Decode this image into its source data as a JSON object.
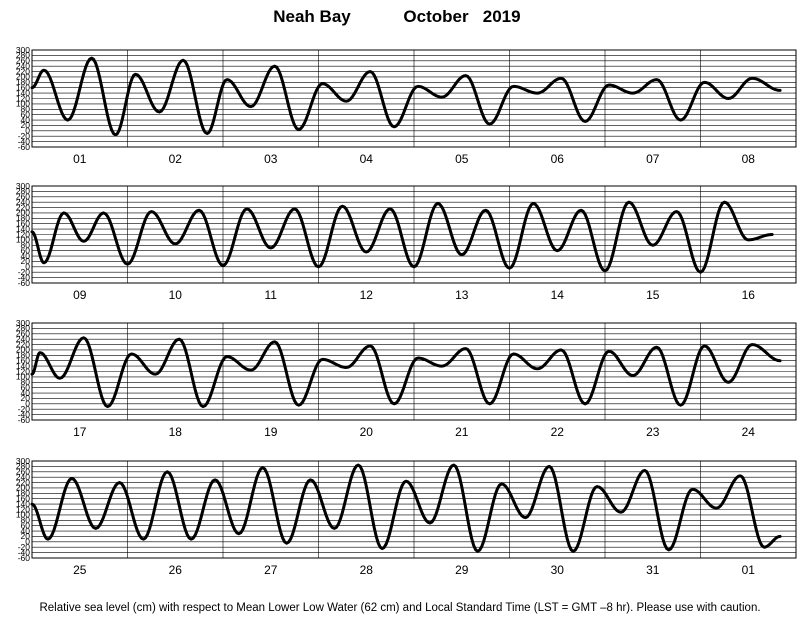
{
  "header": {
    "station": "Neah Bay",
    "month_year": "October   2019"
  },
  "footer": {
    "note": "Relative sea level (cm) with respect to Mean Lower Low Water (62 cm) and Local Standard Time (LST = GMT –8 hr). Please use with caution."
  },
  "chart_data": {
    "type": "line",
    "ylabel": "Relative sea level (cm)",
    "ylim": [
      -60,
      300
    ],
    "y_ticks": [
      300,
      280,
      260,
      240,
      220,
      200,
      180,
      160,
      140,
      120,
      100,
      80,
      60,
      40,
      20,
      0,
      -20,
      -40,
      -60
    ],
    "grid": true,
    "series_color": "#000000",
    "panels": [
      {
        "day_labels": [
          "01",
          "02",
          "03",
          "04",
          "05",
          "06",
          "07",
          "08"
        ],
        "tide": [
          [
            0,
            160
          ],
          [
            3,
            225
          ],
          [
            9,
            40
          ],
          [
            15,
            270
          ],
          [
            21,
            -15
          ],
          [
            26,
            210
          ],
          [
            32,
            70
          ],
          [
            38,
            262
          ],
          [
            44,
            -10
          ],
          [
            49,
            190
          ],
          [
            55,
            90
          ],
          [
            61,
            240
          ],
          [
            67,
            5
          ],
          [
            73,
            175
          ],
          [
            79,
            110
          ],
          [
            85,
            220
          ],
          [
            91,
            15
          ],
          [
            97,
            165
          ],
          [
            103,
            125
          ],
          [
            109,
            205
          ],
          [
            115,
            25
          ],
          [
            121,
            165
          ],
          [
            127,
            140
          ],
          [
            133,
            195
          ],
          [
            139,
            35
          ],
          [
            145,
            170
          ],
          [
            151,
            140
          ],
          [
            157,
            190
          ],
          [
            163,
            40
          ],
          [
            169,
            180
          ],
          [
            175,
            120
          ],
          [
            181,
            195
          ],
          [
            188,
            150
          ]
        ]
      },
      {
        "day_labels": [
          "09",
          "10",
          "11",
          "12",
          "13",
          "14",
          "15",
          "16"
        ],
        "tide": [
          [
            0,
            130
          ],
          [
            3,
            15
          ],
          [
            8,
            200
          ],
          [
            13,
            95
          ],
          [
            18,
            200
          ],
          [
            24,
            10
          ],
          [
            30,
            205
          ],
          [
            36,
            85
          ],
          [
            42,
            210
          ],
          [
            48,
            5
          ],
          [
            54,
            215
          ],
          [
            60,
            70
          ],
          [
            66,
            215
          ],
          [
            72,
            0
          ],
          [
            78,
            225
          ],
          [
            84,
            55
          ],
          [
            90,
            215
          ],
          [
            96,
            0
          ],
          [
            102,
            235
          ],
          [
            108,
            45
          ],
          [
            114,
            210
          ],
          [
            120,
            -5
          ],
          [
            126,
            235
          ],
          [
            132,
            60
          ],
          [
            138,
            210
          ],
          [
            144,
            -15
          ],
          [
            150,
            240
          ],
          [
            156,
            80
          ],
          [
            162,
            205
          ],
          [
            168,
            -20
          ],
          [
            174,
            240
          ],
          [
            180,
            100
          ],
          [
            186,
            120
          ]
        ]
      },
      {
        "day_labels": [
          "17",
          "18",
          "19",
          "20",
          "21",
          "22",
          "23",
          "24"
        ],
        "tide": [
          [
            0,
            110
          ],
          [
            2,
            190
          ],
          [
            7,
            95
          ],
          [
            13,
            245
          ],
          [
            19,
            -10
          ],
          [
            25,
            185
          ],
          [
            31,
            110
          ],
          [
            37,
            240
          ],
          [
            43,
            -10
          ],
          [
            49,
            175
          ],
          [
            55,
            125
          ],
          [
            61,
            230
          ],
          [
            67,
            -5
          ],
          [
            73,
            165
          ],
          [
            79,
            135
          ],
          [
            85,
            215
          ],
          [
            91,
            0
          ],
          [
            97,
            170
          ],
          [
            103,
            140
          ],
          [
            109,
            205
          ],
          [
            115,
            0
          ],
          [
            121,
            185
          ],
          [
            127,
            130
          ],
          [
            133,
            200
          ],
          [
            139,
            0
          ],
          [
            145,
            195
          ],
          [
            151,
            105
          ],
          [
            157,
            210
          ],
          [
            163,
            -5
          ],
          [
            169,
            215
          ],
          [
            175,
            80
          ],
          [
            181,
            220
          ],
          [
            188,
            160
          ]
        ]
      },
      {
        "day_labels": [
          "25",
          "26",
          "27",
          "28",
          "29",
          "30",
          "31",
          "01"
        ],
        "tide": [
          [
            0,
            140
          ],
          [
            4,
            10
          ],
          [
            10,
            235
          ],
          [
            16,
            50
          ],
          [
            22,
            220
          ],
          [
            28,
            10
          ],
          [
            34,
            260
          ],
          [
            40,
            10
          ],
          [
            46,
            230
          ],
          [
            52,
            30
          ],
          [
            58,
            275
          ],
          [
            64,
            -5
          ],
          [
            70,
            230
          ],
          [
            76,
            50
          ],
          [
            82,
            285
          ],
          [
            88,
            -25
          ],
          [
            94,
            225
          ],
          [
            100,
            70
          ],
          [
            106,
            285
          ],
          [
            112,
            -35
          ],
          [
            118,
            215
          ],
          [
            124,
            90
          ],
          [
            130,
            280
          ],
          [
            136,
            -35
          ],
          [
            142,
            205
          ],
          [
            148,
            110
          ],
          [
            154,
            265
          ],
          [
            160,
            -30
          ],
          [
            166,
            195
          ],
          [
            172,
            125
          ],
          [
            178,
            245
          ],
          [
            184,
            -20
          ],
          [
            188,
            20
          ]
        ]
      }
    ]
  }
}
